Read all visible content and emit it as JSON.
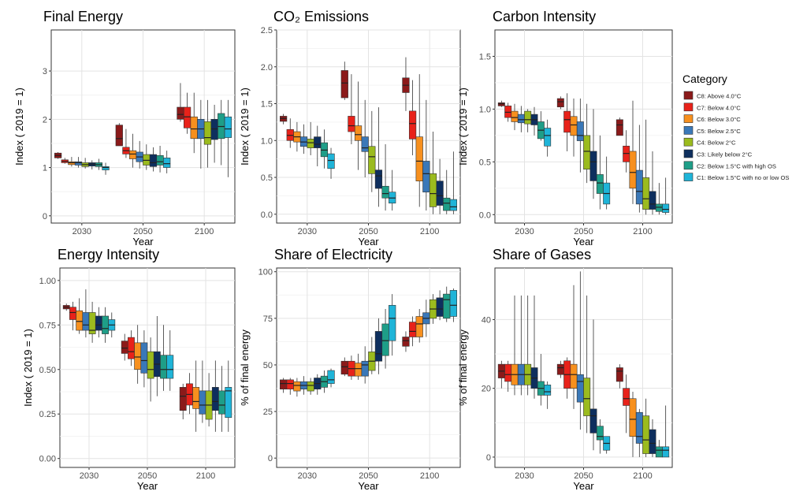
{
  "legend": {
    "title": "Category",
    "items": [
      {
        "label": "C8: Above 4.0°C",
        "color": "#8B1A1A"
      },
      {
        "label": "C7: Below 4.0°C",
        "color": "#E8221A"
      },
      {
        "label": "C6: Below 3.0°C",
        "color": "#F7901E"
      },
      {
        "label": "C5: Below 2.5°C",
        "color": "#3A78B8"
      },
      {
        "label": "C4: Below 2°C",
        "color": "#9BBB1E"
      },
      {
        "label": "C3: Likely below 2°C",
        "color": "#0E2F5E"
      },
      {
        "label": "C2: Below 1.5°C with high OS",
        "color": "#1E9E88"
      },
      {
        "label": "C1: Below 1.5°C with no or low OS",
        "color": "#1FB4D8"
      }
    ]
  },
  "chart_data": [
    {
      "type": "box",
      "title": "Final Energy",
      "xlabel": "Year",
      "ylabel": "Index ( 2019  = 1)",
      "categories": [
        "2030",
        "2050",
        "2100"
      ],
      "ylim": [
        -0.15,
        3.85
      ],
      "yticks": [
        0,
        1,
        2,
        3
      ],
      "ytick_labels": [
        "0",
        "1",
        "2",
        "3"
      ],
      "groups": [
        [
          [
            1.18,
            1.2,
            1.25,
            1.3,
            1.32
          ],
          [
            1.08,
            1.1,
            1.13,
            1.16,
            1.2
          ],
          [
            1.02,
            1.06,
            1.1,
            1.12,
            1.22
          ],
          [
            1.0,
            1.05,
            1.1,
            1.12,
            1.22
          ],
          [
            0.98,
            1.02,
            1.06,
            1.1,
            1.2
          ],
          [
            0.96,
            1.03,
            1.07,
            1.1,
            1.15
          ],
          [
            0.95,
            1.02,
            1.06,
            1.1,
            1.18
          ],
          [
            0.85,
            0.95,
            1.0,
            1.02,
            1.1
          ]
        ],
        [
          [
            1.45,
            1.45,
            1.6,
            1.88,
            1.92
          ],
          [
            1.2,
            1.28,
            1.35,
            1.42,
            1.8
          ],
          [
            1.0,
            1.18,
            1.28,
            1.35,
            1.7
          ],
          [
            0.98,
            1.12,
            1.22,
            1.32,
            1.55
          ],
          [
            0.95,
            1.05,
            1.15,
            1.27,
            1.48
          ],
          [
            0.92,
            1.02,
            1.1,
            1.27,
            1.42
          ],
          [
            0.9,
            1.05,
            1.12,
            1.25,
            1.45
          ],
          [
            0.88,
            1.0,
            1.08,
            1.2,
            1.35
          ]
        ],
        [
          [
            1.95,
            2.0,
            2.1,
            2.25,
            2.75
          ],
          [
            1.7,
            1.82,
            2.05,
            2.25,
            2.55
          ],
          [
            1.3,
            1.6,
            1.8,
            2.05,
            2.55
          ],
          [
            0.98,
            1.6,
            1.8,
            2.0,
            2.4
          ],
          [
            1.0,
            1.48,
            1.62,
            1.95,
            2.4
          ],
          [
            1.1,
            1.58,
            1.8,
            2.0,
            2.3
          ],
          [
            1.05,
            1.6,
            1.85,
            2.12,
            2.4
          ],
          [
            0.8,
            1.62,
            1.8,
            2.05,
            2.4
          ]
        ]
      ]
    },
    {
      "type": "box",
      "title": "CO₂ Emissions",
      "xlabel": "Year",
      "ylabel": "Index ( 2019  = 1)",
      "categories": [
        "2030",
        "2050",
        "2100"
      ],
      "ylim": [
        -0.12,
        2.5
      ],
      "yticks": [
        0,
        0.5,
        1.0,
        1.5,
        2.0,
        2.5
      ],
      "ytick_labels": [
        "0.0",
        "0.5",
        "1.0",
        "1.5",
        "2.0",
        "2.5"
      ],
      "groups": [
        [
          [
            1.22,
            1.26,
            1.3,
            1.33,
            1.36
          ],
          [
            0.9,
            1.0,
            1.07,
            1.15,
            1.3
          ],
          [
            0.85,
            0.98,
            1.05,
            1.12,
            1.25
          ],
          [
            0.82,
            0.92,
            0.98,
            1.05,
            1.22
          ],
          [
            0.8,
            0.9,
            0.97,
            1.02,
            1.25
          ],
          [
            0.65,
            0.9,
            0.95,
            1.05,
            1.2
          ],
          [
            0.62,
            0.78,
            0.87,
            0.97,
            1.15
          ],
          [
            0.48,
            0.62,
            0.73,
            0.82,
            0.9
          ]
        ],
        [
          [
            1.55,
            1.58,
            1.78,
            1.95,
            2.07
          ],
          [
            0.95,
            1.12,
            1.2,
            1.33,
            1.9
          ],
          [
            0.6,
            1.0,
            1.08,
            1.2,
            1.8
          ],
          [
            0.5,
            0.85,
            0.9,
            1.05,
            1.55
          ],
          [
            0.3,
            0.55,
            0.78,
            0.92,
            1.4
          ],
          [
            0.1,
            0.35,
            0.52,
            0.6,
            1.45
          ],
          [
            0.05,
            0.22,
            0.28,
            0.38,
            0.95
          ],
          [
            0.05,
            0.15,
            0.22,
            0.3,
            0.6
          ]
        ],
        [
          [
            1.4,
            1.65,
            1.75,
            1.85,
            2.13
          ],
          [
            0.8,
            1.02,
            1.23,
            1.4,
            1.82
          ],
          [
            0.1,
            0.45,
            0.72,
            1.05,
            1.9
          ],
          [
            0.05,
            0.3,
            0.55,
            0.72,
            1.55
          ],
          [
            0.0,
            0.1,
            0.28,
            0.55,
            1.12
          ],
          [
            0.0,
            0.12,
            0.25,
            0.45,
            0.75
          ],
          [
            0.0,
            0.05,
            0.15,
            0.22,
            0.6
          ],
          [
            0.0,
            0.05,
            0.1,
            0.2,
            0.85
          ]
        ]
      ]
    },
    {
      "type": "box",
      "title": "Carbon Intensity",
      "xlabel": "Year",
      "ylabel": "Index ( 2019  = 1)",
      "categories": [
        "2030",
        "2050",
        "2100"
      ],
      "ylim": [
        -0.08,
        1.75
      ],
      "yticks": [
        0,
        0.5,
        1.0,
        1.5
      ],
      "ytick_labels": [
        "0.0",
        "0.5",
        "1.0",
        "1.5"
      ],
      "groups": [
        [
          [
            1.02,
            1.03,
            1.05,
            1.06,
            1.08
          ],
          [
            0.88,
            0.92,
            0.97,
            1.03,
            1.06
          ],
          [
            0.8,
            0.88,
            0.92,
            0.98,
            1.05
          ],
          [
            0.78,
            0.87,
            0.9,
            0.95,
            1.03
          ],
          [
            0.78,
            0.86,
            0.9,
            0.98,
            1.0
          ],
          [
            0.75,
            0.85,
            0.9,
            0.95,
            1.02
          ],
          [
            0.7,
            0.72,
            0.8,
            0.88,
            0.98
          ],
          [
            0.55,
            0.65,
            0.75,
            0.82,
            0.9
          ]
        ],
        [
          [
            1.0,
            1.02,
            1.07,
            1.1,
            1.12
          ],
          [
            0.6,
            0.78,
            0.9,
            0.98,
            1.15
          ],
          [
            0.55,
            0.75,
            0.85,
            0.93,
            1.1
          ],
          [
            0.4,
            0.7,
            0.75,
            0.88,
            1.1
          ],
          [
            0.3,
            0.43,
            0.6,
            0.75,
            1.05
          ],
          [
            0.15,
            0.32,
            0.5,
            0.6,
            1.0
          ],
          [
            0.05,
            0.2,
            0.3,
            0.38,
            0.75
          ],
          [
            0.05,
            0.1,
            0.2,
            0.3,
            0.55
          ]
        ],
        [
          [
            0.75,
            0.75,
            0.85,
            0.9,
            0.92
          ],
          [
            0.4,
            0.5,
            0.58,
            0.65,
            0.8
          ],
          [
            0.1,
            0.25,
            0.4,
            0.6,
            1.08
          ],
          [
            0.02,
            0.1,
            0.22,
            0.42,
            0.85
          ],
          [
            0.0,
            0.05,
            0.15,
            0.35,
            0.9
          ],
          [
            0.0,
            0.05,
            0.1,
            0.22,
            0.6
          ],
          [
            0.0,
            0.03,
            0.07,
            0.1,
            0.3
          ],
          [
            0.0,
            0.02,
            0.05,
            0.1,
            0.35
          ]
        ]
      ]
    },
    {
      "type": "box",
      "title": "Energy Intensity",
      "xlabel": "Year",
      "ylabel": "Index ( 2019  = 1)",
      "categories": [
        "2030",
        "2050",
        "2100"
      ],
      "ylim": [
        -0.05,
        1.07
      ],
      "yticks": [
        0,
        0.25,
        0.5,
        0.75,
        1.0
      ],
      "ytick_labels": [
        "0.00",
        "0.25",
        "0.50",
        "0.75",
        "1.00"
      ],
      "groups": [
        [
          [
            0.83,
            0.84,
            0.85,
            0.86,
            0.87
          ],
          [
            0.72,
            0.78,
            0.82,
            0.85,
            0.88
          ],
          [
            0.7,
            0.72,
            0.77,
            0.83,
            0.9
          ],
          [
            0.68,
            0.72,
            0.75,
            0.82,
            0.95
          ],
          [
            0.65,
            0.7,
            0.72,
            0.82,
            0.88
          ],
          [
            0.68,
            0.72,
            0.75,
            0.8,
            0.85
          ],
          [
            0.65,
            0.7,
            0.73,
            0.8,
            0.85
          ],
          [
            0.68,
            0.72,
            0.75,
            0.78,
            0.82
          ]
        ],
        [
          [
            0.55,
            0.59,
            0.62,
            0.66,
            0.7
          ],
          [
            0.52,
            0.56,
            0.6,
            0.68,
            0.72
          ],
          [
            0.42,
            0.5,
            0.57,
            0.65,
            0.75
          ],
          [
            0.4,
            0.48,
            0.55,
            0.65,
            0.72
          ],
          [
            0.32,
            0.45,
            0.5,
            0.6,
            0.68
          ],
          [
            0.35,
            0.46,
            0.53,
            0.6,
            0.8
          ],
          [
            0.38,
            0.45,
            0.5,
            0.58,
            0.75
          ],
          [
            0.38,
            0.45,
            0.5,
            0.58,
            0.72
          ]
        ],
        [
          [
            0.22,
            0.27,
            0.35,
            0.4,
            0.42
          ],
          [
            0.25,
            0.3,
            0.36,
            0.42,
            0.48
          ],
          [
            0.15,
            0.28,
            0.32,
            0.4,
            0.55
          ],
          [
            0.2,
            0.25,
            0.3,
            0.38,
            0.55
          ],
          [
            0.18,
            0.22,
            0.3,
            0.38,
            0.48
          ],
          [
            0.15,
            0.27,
            0.32,
            0.4,
            0.55
          ],
          [
            0.15,
            0.25,
            0.3,
            0.38,
            0.52
          ],
          [
            0.15,
            0.23,
            0.38,
            0.4,
            0.55
          ]
        ]
      ]
    },
    {
      "type": "box",
      "title": "Share of Electricity",
      "xlabel": "Year",
      "ylabel": "% of final energy",
      "categories": [
        "2030",
        "2050",
        "2100"
      ],
      "ylim": [
        -5,
        102
      ],
      "yticks": [
        0,
        25,
        50,
        75,
        100
      ],
      "ytick_labels": [
        "0",
        "25",
        "50",
        "75",
        "100"
      ],
      "groups": [
        [
          [
            35,
            37,
            40,
            42,
            43
          ],
          [
            34,
            37,
            40,
            42,
            43
          ],
          [
            33,
            36,
            39,
            41,
            43
          ],
          [
            34,
            37,
            39,
            41,
            44
          ],
          [
            34,
            36,
            39,
            41,
            43
          ],
          [
            34,
            37,
            40,
            43,
            45
          ],
          [
            35,
            38,
            41,
            44,
            47
          ],
          [
            38,
            40,
            42,
            47,
            48
          ]
        ],
        [
          [
            44,
            45,
            49,
            52,
            54
          ],
          [
            42,
            44,
            48,
            52,
            55
          ],
          [
            42,
            44,
            48,
            51,
            56
          ],
          [
            40,
            44,
            50,
            52,
            60
          ],
          [
            45,
            47,
            52,
            57,
            65
          ],
          [
            45,
            52,
            56,
            68,
            75
          ],
          [
            48,
            55,
            63,
            72,
            80
          ],
          [
            55,
            63,
            75,
            82,
            88
          ]
        ],
        [
          [
            57,
            60,
            63,
            65,
            68
          ],
          [
            60,
            65,
            68,
            73,
            76
          ],
          [
            62,
            65,
            72,
            76,
            80
          ],
          [
            65,
            72,
            75,
            78,
            85
          ],
          [
            72,
            75,
            80,
            85,
            88
          ],
          [
            74,
            76,
            80,
            86,
            90
          ],
          [
            73,
            75,
            85,
            88,
            92
          ],
          [
            73,
            76,
            82,
            90,
            91
          ]
        ]
      ]
    },
    {
      "type": "box",
      "title": "Share of Gases",
      "xlabel": "Year",
      "ylabel": "% of final energy",
      "categories": [
        "2030",
        "2050",
        "2100"
      ],
      "ylim": [
        -3,
        55
      ],
      "yticks": [
        0,
        20,
        40
      ],
      "ytick_labels": [
        "0",
        "20",
        "40"
      ],
      "groups": [
        [
          [
            20,
            23,
            25,
            27,
            28
          ],
          [
            19,
            22,
            24,
            27,
            28
          ],
          [
            18,
            21,
            24,
            27,
            47
          ],
          [
            18,
            21,
            24,
            27,
            47
          ],
          [
            18,
            21,
            24,
            27,
            47
          ],
          [
            17,
            20,
            23,
            26,
            47
          ],
          [
            15,
            18,
            20,
            22,
            30
          ],
          [
            14,
            18,
            19,
            21,
            22
          ]
        ],
        [
          [
            23,
            24,
            26,
            27,
            28
          ],
          [
            17,
            20,
            24,
            28,
            29
          ],
          [
            14,
            20,
            24,
            27,
            50
          ],
          [
            8,
            16,
            22,
            24,
            54
          ],
          [
            7,
            12,
            17,
            23,
            47
          ],
          [
            2,
            7,
            12,
            14,
            40
          ],
          [
            1,
            5,
            6,
            9,
            11
          ],
          [
            1,
            2,
            4,
            6,
            6
          ]
        ],
        [
          [
            20,
            22,
            25,
            26,
            27
          ],
          [
            7,
            15,
            17,
            20,
            24
          ],
          [
            0,
            6,
            11,
            17,
            19
          ],
          [
            0,
            4,
            6,
            13,
            14
          ],
          [
            0,
            1,
            5,
            12,
            17
          ],
          [
            0,
            1,
            4,
            8,
            11
          ],
          [
            0,
            0,
            2,
            3,
            5
          ],
          [
            0,
            0,
            2,
            3,
            15
          ]
        ]
      ]
    }
  ]
}
